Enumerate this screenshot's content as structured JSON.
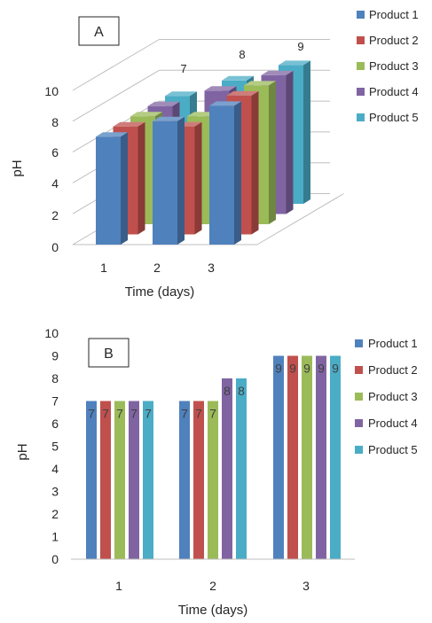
{
  "colors": {
    "Product 1": "#4f81bd",
    "Product 2": "#c0504d",
    "Product 3": "#9bbb59",
    "Product 4": "#8064a2",
    "Product 5": "#4bacc6",
    "gridline": "#bfbfbf",
    "axis_text": "#262626"
  },
  "chart_data": [
    {
      "type": "bar",
      "panel_label": "A",
      "style": "3d-clustered-column",
      "categories": [
        "1",
        "2",
        "3"
      ],
      "series": [
        {
          "name": "Product 1",
          "values": [
            7,
            8,
            9
          ]
        },
        {
          "name": "Product 2",
          "values": [
            7,
            7,
            9
          ]
        },
        {
          "name": "Product 3",
          "values": [
            7,
            7,
            9
          ]
        },
        {
          "name": "Product 4",
          "values": [
            7,
            8,
            9
          ]
        },
        {
          "name": "Product 5",
          "values": [
            7,
            8,
            9
          ]
        }
      ],
      "data_labels": [
        "7",
        "8",
        "9"
      ],
      "xlabel": "Time (days)",
      "ylabel": "pH",
      "ylim": [
        0,
        10
      ],
      "yticks": [
        "0",
        "2",
        "4",
        "6",
        "8",
        "10"
      ],
      "grid": true,
      "legend": "right"
    },
    {
      "type": "bar",
      "panel_label": "B",
      "categories": [
        "1",
        "2",
        "3"
      ],
      "series": [
        {
          "name": "Product 1",
          "values": [
            7,
            7,
            9
          ]
        },
        {
          "name": "Product 2",
          "values": [
            7,
            7,
            9
          ]
        },
        {
          "name": "Product 3",
          "values": [
            7,
            7,
            9
          ]
        },
        {
          "name": "Product 4",
          "values": [
            7,
            8,
            9
          ]
        },
        {
          "name": "Product 5",
          "values": [
            7,
            8,
            9
          ]
        }
      ],
      "xlabel": "Time (days)",
      "ylabel": "pH",
      "ylim": [
        0,
        10
      ],
      "yticks": [
        "0",
        "1",
        "2",
        "3",
        "4",
        "5",
        "6",
        "7",
        "8",
        "9",
        "10"
      ],
      "grid": false,
      "legend": "right"
    }
  ]
}
